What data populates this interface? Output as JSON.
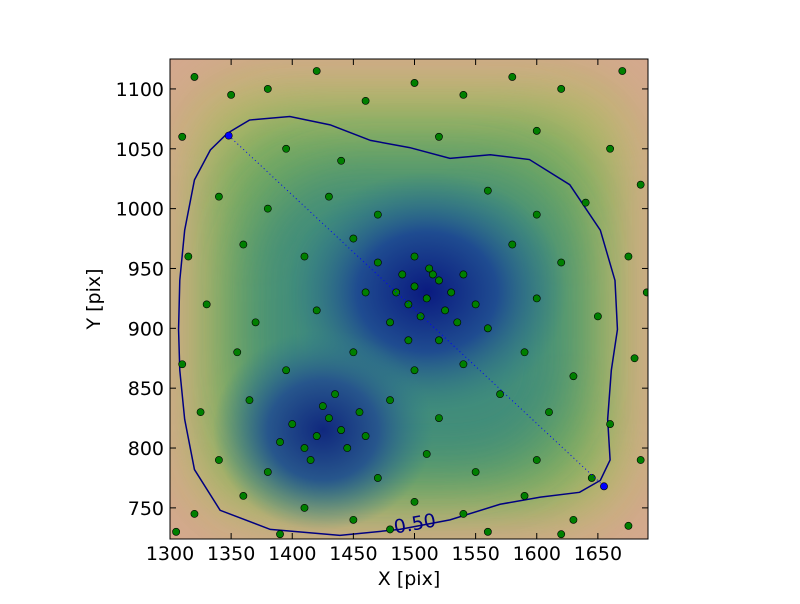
{
  "chart_data": {
    "type": "scatter",
    "xlabel": "X [pix]",
    "ylabel": "Y [pix]",
    "xlim": [
      1300,
      1691
    ],
    "ylim": [
      724,
      1125
    ],
    "xticks": [
      1300,
      1350,
      1400,
      1450,
      1500,
      1550,
      1600,
      1650
    ],
    "yticks": [
      750,
      800,
      850,
      900,
      950,
      1000,
      1050,
      1100
    ],
    "series": [
      {
        "color": "#007f00",
        "x": [
          1500,
          1510,
          1520,
          1495,
          1515,
          1505,
          1530,
          1490,
          1525,
          1485,
          1512,
          1540,
          1470,
          1500,
          1535,
          1480,
          1520,
          1460,
          1550,
          1495,
          1420,
          1430,
          1410,
          1440,
          1425,
          1400,
          1445,
          1415,
          1435,
          1455,
          1390,
          1460,
          1320,
          1350,
          1380,
          1420,
          1460,
          1500,
          1540,
          1580,
          1620,
          1670,
          1310,
          1395,
          1440,
          1520,
          1600,
          1660,
          1340,
          1380,
          1430,
          1470,
          1560,
          1600,
          1640,
          1685,
          1315,
          1360,
          1410,
          1450,
          1580,
          1620,
          1675,
          1330,
          1370,
          1420,
          1560,
          1600,
          1650,
          1690,
          1310,
          1355,
          1395,
          1450,
          1500,
          1540,
          1590,
          1630,
          1680,
          1325,
          1365,
          1480,
          1520,
          1570,
          1610,
          1660,
          1340,
          1380,
          1470,
          1510,
          1550,
          1600,
          1645,
          1685,
          1320,
          1360,
          1410,
          1450,
          1500,
          1540,
          1590,
          1630,
          1675,
          1305,
          1390,
          1480,
          1560,
          1620
        ],
        "y": [
          935,
          925,
          940,
          920,
          945,
          910,
          930,
          945,
          915,
          930,
          950,
          945,
          955,
          960,
          905,
          905,
          890,
          930,
          920,
          890,
          810,
          825,
          800,
          815,
          835,
          820,
          800,
          790,
          845,
          830,
          805,
          810,
          1110,
          1095,
          1100,
          1115,
          1090,
          1105,
          1095,
          1110,
          1100,
          1115,
          1060,
          1050,
          1040,
          1060,
          1065,
          1050,
          1010,
          1000,
          1010,
          995,
          1015,
          995,
          1005,
          1020,
          960,
          970,
          960,
          975,
          970,
          955,
          960,
          920,
          905,
          915,
          900,
          925,
          910,
          930,
          870,
          880,
          865,
          880,
          865,
          870,
          880,
          860,
          875,
          830,
          840,
          840,
          825,
          845,
          830,
          820,
          790,
          780,
          775,
          795,
          780,
          790,
          775,
          790,
          745,
          760,
          750,
          740,
          755,
          745,
          760,
          740,
          735,
          730,
          728,
          732,
          730,
          728
        ]
      },
      {
        "color": "#0000ff",
        "x": [
          1348,
          1655
        ],
        "y": [
          1061,
          768
        ]
      }
    ],
    "contour": {
      "label": "0.50",
      "color": "#000080",
      "x": [
        1347,
        1365,
        1398,
        1431,
        1464,
        1496,
        1529,
        1562,
        1594,
        1627,
        1652,
        1664,
        1666,
        1661,
        1658,
        1660,
        1652,
        1635,
        1603,
        1570,
        1529,
        1488,
        1439,
        1382,
        1341,
        1320,
        1312,
        1308,
        1307,
        1308,
        1312,
        1320,
        1333
      ],
      "y": [
        1063,
        1074,
        1077,
        1070,
        1057,
        1051,
        1042,
        1045,
        1041,
        1020,
        982,
        940,
        899,
        865,
        824,
        790,
        773,
        763,
        759,
        753,
        740,
        732,
        727,
        732,
        748,
        782,
        824,
        865,
        899,
        940,
        982,
        1024,
        1049
      ]
    }
  }
}
